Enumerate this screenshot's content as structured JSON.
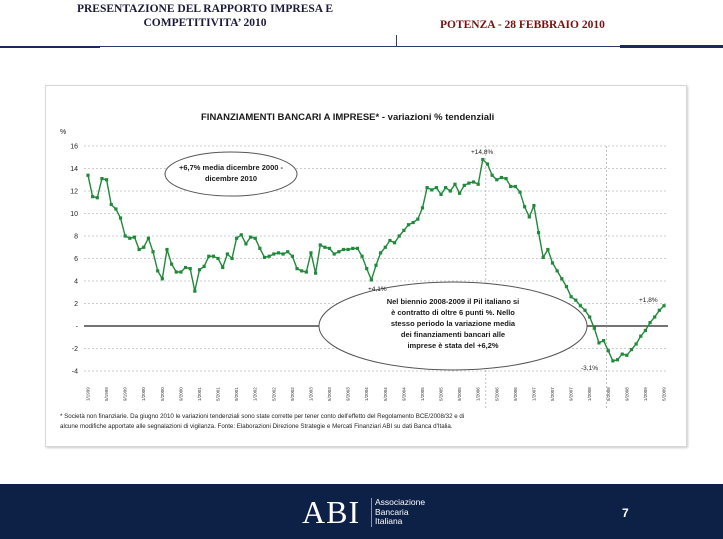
{
  "header": {
    "title_line1": "PRESENTAZIONE DEL RAPPORTO IMPRESA E",
    "title_line2": "COMPETITIVITA’ 2010",
    "event": "POTENZA  - 28 FEBBRAIO 2010"
  },
  "footer": {
    "logo": "ABI",
    "logo_sub": [
      "Associazione",
      "Bancaria",
      "Italiana"
    ],
    "page_number": "7"
  },
  "chart_data": {
    "type": "line",
    "title": "FINANZIAMENTI BANCARI A IMPRESE* - variazioni % tendenziali",
    "ylabel": "%",
    "ylim": [
      -4,
      16
    ],
    "yticks": [
      -4,
      -2,
      0,
      2,
      4,
      6,
      8,
      10,
      12,
      14,
      16
    ],
    "ytick_labels": [
      "-4",
      "-2",
      "-",
      "2",
      "4",
      "6",
      "8",
      "10",
      "12",
      "14",
      "16"
    ],
    "grid": true,
    "series": [
      {
        "color": "#1f8a3a",
        "values": [
          13.4,
          11.5,
          11.4,
          13.1,
          13.0,
          10.8,
          10.4,
          9.6,
          8.0,
          7.8,
          7.9,
          6.8,
          7.0,
          7.8,
          6.6,
          4.9,
          4.2,
          6.8,
          5.5,
          4.8,
          4.8,
          5.2,
          5.1,
          3.1,
          5.0,
          5.3,
          6.2,
          6.2,
          6.0,
          5.2,
          6.4,
          6.0,
          7.8,
          8.1,
          7.3,
          7.9,
          7.8,
          6.9,
          6.1,
          6.2,
          6.4,
          6.5,
          6.4,
          6.6,
          6.2,
          5.1,
          4.9,
          4.8,
          6.5,
          4.7,
          7.2,
          7.0,
          6.9,
          6.4,
          6.6,
          6.8,
          6.8,
          6.9,
          6.9,
          6.2,
          5.1,
          4.1,
          5.4,
          6.5,
          7.0,
          7.6,
          7.4,
          8.0,
          8.5,
          9.0,
          9.2,
          9.5,
          10.5,
          12.3,
          12.1,
          12.3,
          11.7,
          12.3,
          12.0,
          12.6,
          11.8,
          12.5,
          12.7,
          12.8,
          12.6,
          14.8,
          14.4,
          13.4,
          13.0,
          13.2,
          13.1,
          12.4,
          12.4,
          11.9,
          10.6,
          9.7,
          10.7,
          8.3,
          6.1,
          6.8,
          5.6,
          4.9,
          4.2,
          3.5,
          2.6,
          2.3,
          1.8,
          1.4,
          0.8,
          -0.2,
          -1.5,
          -1.3,
          -2.2,
          -3.1,
          -3.0,
          -2.5,
          -2.6,
          -2.1,
          -1.6,
          -0.9,
          -0.4,
          0.3,
          0.8,
          1.4,
          1.8
        ]
      }
    ],
    "x_first": "1/1999",
    "peaks": {
      "max": "+14,8%",
      "min": "-3,1%",
      "last": "+1,8%",
      "local_min": "+4,1%"
    },
    "annotations": [
      "+6,7% media dicembre 2000 - dicembre 2010",
      "Nel biennio 2008-2009 il Pil italiano si è contratto di oltre 6 punti %. Nello stesso periodo la variazione media dei finanziamenti bancari alle imprese è stata del +6,2%"
    ],
    "footnote": "* Società non finanziarie. Da giugno 2010 le variazioni tendenziali sono state corrette per tener conto dell'effetto del Regolamento BCE/2008/32 e di alcune modifiche apportate alle segnalazioni di vigilanza. Fonte: Elaborazioni Direzione Strategie e Mercati Finanziari ABI su dati Banca d'Italia."
  }
}
